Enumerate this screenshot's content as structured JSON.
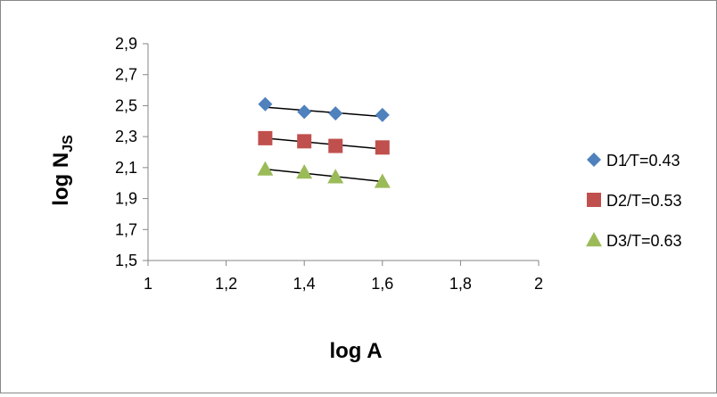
{
  "chart_data": {
    "type": "scatter",
    "title": "",
    "xlabel": "log A",
    "ylabel_main": "log N",
    "ylabel_sub": "JS",
    "xlim": [
      1,
      2
    ],
    "ylim": [
      1.5,
      2.9
    ],
    "x_ticks": [
      1,
      1.2,
      1.4,
      1.6,
      1.8,
      2
    ],
    "x_tick_labels": [
      "1",
      "1,2",
      "1,4",
      "1,6",
      "1,8",
      "2"
    ],
    "y_ticks": [
      1.5,
      1.7,
      1.9,
      2.1,
      2.3,
      2.5,
      2.7,
      2.9
    ],
    "y_tick_labels": [
      "1,5",
      "1,7",
      "1,9",
      "2,1",
      "2,3",
      "2,5",
      "2,7",
      "2,9"
    ],
    "legend_position": "right",
    "grid": false,
    "series": [
      {
        "name": "D1⁄T=0.43",
        "marker": "diamond",
        "color": "#4F81BD",
        "points": [
          [
            1.3,
            2.51
          ],
          [
            1.4,
            2.46
          ],
          [
            1.48,
            2.45
          ],
          [
            1.6,
            2.44
          ]
        ],
        "trendline": [
          [
            1.3,
            2.49
          ],
          [
            1.6,
            2.43
          ]
        ]
      },
      {
        "name": "D2/T=0.53",
        "marker": "square",
        "color": "#C0504D",
        "points": [
          [
            1.3,
            2.29
          ],
          [
            1.4,
            2.27
          ],
          [
            1.48,
            2.24
          ],
          [
            1.6,
            2.23
          ]
        ],
        "trendline": [
          [
            1.3,
            2.29
          ],
          [
            1.6,
            2.22
          ]
        ]
      },
      {
        "name": "D3/T=0.63",
        "marker": "triangle",
        "color": "#9BBB59",
        "points": [
          [
            1.3,
            2.09
          ],
          [
            1.4,
            2.07
          ],
          [
            1.48,
            2.04
          ],
          [
            1.6,
            2.01
          ]
        ],
        "trendline": [
          [
            1.3,
            2.09
          ],
          [
            1.6,
            2.01
          ]
        ]
      }
    ]
  }
}
